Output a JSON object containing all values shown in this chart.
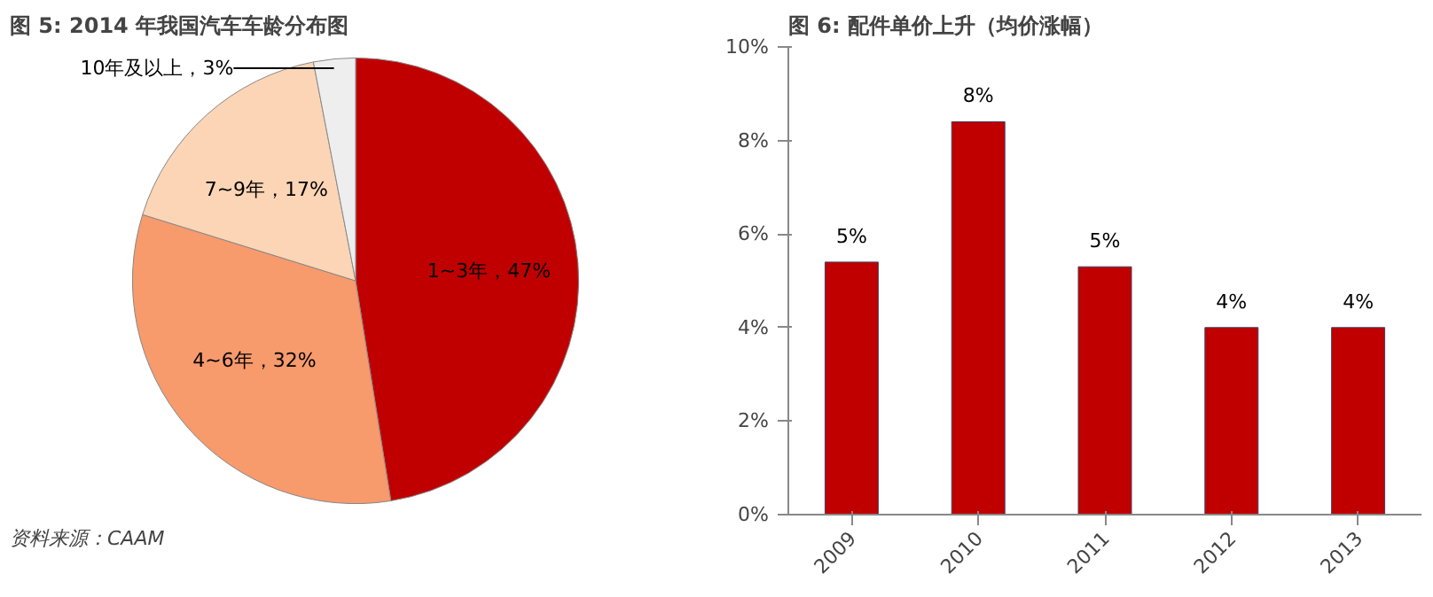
{
  "chart_data": [
    {
      "type": "pie",
      "title": "图 5:      2014 年我国汽车车龄分布图",
      "categories": [
        "1~3年，47%",
        "4~6年，32%",
        "7~9年，17%",
        "10年及以上，3%"
      ],
      "values": [
        47,
        32,
        17,
        3
      ],
      "colors": [
        "#c00000",
        "#f79a6c",
        "#fbd5b5",
        "#eeeeee"
      ],
      "annotations": [
        "资料来源：CAAM"
      ]
    },
    {
      "type": "bar",
      "title": "图 6:      配件单价上升（均价涨幅）",
      "categories": [
        "2009",
        "2010",
        "2011",
        "2012",
        "2013"
      ],
      "series": [
        {
          "color": "#c00000",
          "values": [
            5.4,
            8.4,
            5.3,
            4.0,
            4.0
          ]
        }
      ],
      "value_labels": [
        "5%",
        "8%",
        "5%",
        "4%",
        "4%"
      ],
      "ylim": [
        0,
        10
      ],
      "yticks": [
        {
          "value": 0,
          "label": "0%"
        },
        {
          "value": 2,
          "label": "2%"
        },
        {
          "value": 4,
          "label": "4%"
        },
        {
          "value": 6,
          "label": "6%"
        },
        {
          "value": 8,
          "label": "8%"
        },
        {
          "value": 10,
          "label": "10%"
        }
      ],
      "grid": false
    }
  ]
}
